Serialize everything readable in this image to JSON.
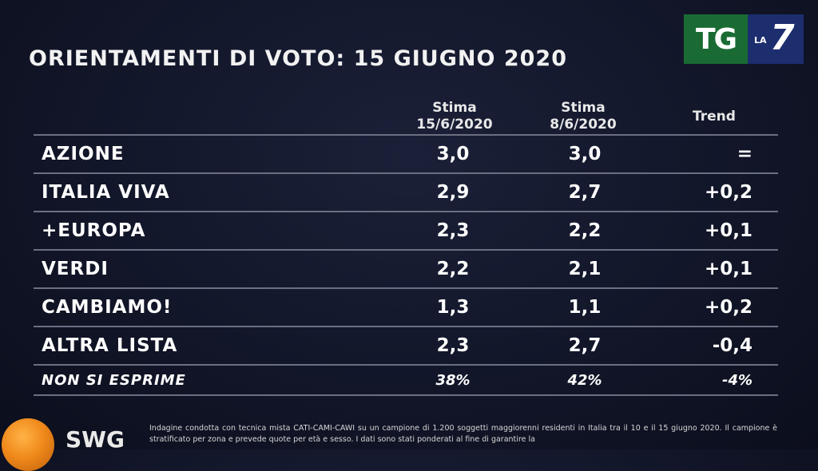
{
  "title": "ORIENTAMENTI DI VOTO: 15 GIUGNO 2020",
  "logo": {
    "tg": "TG",
    "la": "LA",
    "seven": "7"
  },
  "brand": "SWG",
  "colors": {
    "background": "#121629",
    "tg_green": "#1a6b33",
    "la7_blue": "#1c2e6e",
    "swg_orange": "#f08a1c"
  },
  "chart_data": {
    "type": "table",
    "columns": [
      {
        "line1": "Stima",
        "line2": "15/6/2020"
      },
      {
        "line1": "Stima",
        "line2": "8/6/2020"
      },
      {
        "line1": "Trend",
        "line2": ""
      }
    ],
    "rows": [
      {
        "party": "AZIONE",
        "v1": "3,0",
        "v2": "3,0",
        "trend": "="
      },
      {
        "party": "ITALIA VIVA",
        "v1": "2,9",
        "v2": "2,7",
        "trend": "+0,2"
      },
      {
        "party": "+EUROPA",
        "v1": "2,3",
        "v2": "2,2",
        "trend": "+0,1"
      },
      {
        "party": "VERDI",
        "v1": "2,2",
        "v2": "2,1",
        "trend": "+0,1"
      },
      {
        "party": "CAMBIAMO!",
        "v1": "1,3",
        "v2": "1,1",
        "trend": "+0,2"
      },
      {
        "party": "ALTRA LISTA",
        "v1": "2,3",
        "v2": "2,7",
        "trend": "-0,4"
      },
      {
        "party": "NON SI ESPRIME",
        "v1": "38%",
        "v2": "42%",
        "trend": "-4%"
      }
    ]
  },
  "footnote": "Indagine condotta con tecnica mista CATI-CAMI-CAWI su un campione di 1.200 soggetti maggiorenni residenti in Italia tra il 10 e il 15 giugno 2020. Il campione è stratificato per zona e prevede quote per età e sesso. I dati sono stati ponderati al fine di garantire la"
}
